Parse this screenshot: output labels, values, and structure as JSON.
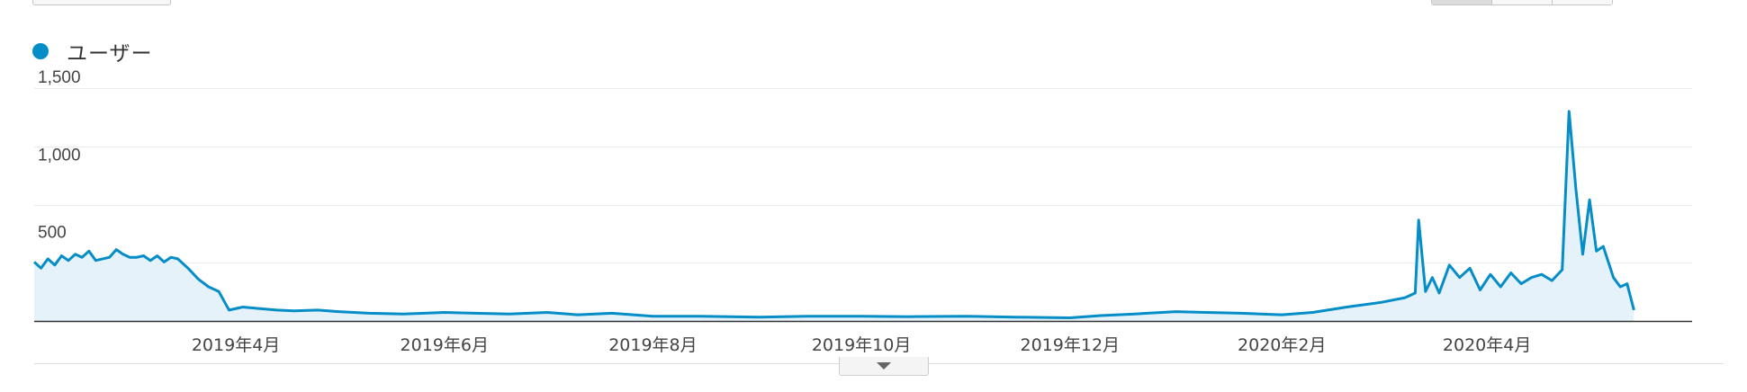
{
  "legend": {
    "label": "ユーザー",
    "color": "#058dc7"
  },
  "chart_data": {
    "type": "area",
    "title": "",
    "xlabel": "",
    "ylabel": "",
    "ylim": [
      0,
      1500
    ],
    "yticks": [
      {
        "value": 500,
        "label": "500"
      },
      {
        "value": 1000,
        "label": "1,000"
      },
      {
        "value": 1500,
        "label": "1,500"
      }
    ],
    "xlim": [
      "2019-02-01",
      "2020-05-31"
    ],
    "xticks": [
      {
        "date": "2019-04-01",
        "label": "2019年4月"
      },
      {
        "date": "2019-06-01",
        "label": "2019年6月"
      },
      {
        "date": "2019-08-01",
        "label": "2019年8月"
      },
      {
        "date": "2019-10-01",
        "label": "2019年10月"
      },
      {
        "date": "2019-12-01",
        "label": "2019年12月"
      },
      {
        "date": "2020-02-01",
        "label": "2020年2月"
      },
      {
        "date": "2020-04-01",
        "label": "2020年4月"
      }
    ],
    "grid": true,
    "series": [
      {
        "name": "ユーザー",
        "color": "#058dc7",
        "points": [
          [
            "2019-02-01",
            380
          ],
          [
            "2019-02-03",
            340
          ],
          [
            "2019-02-05",
            400
          ],
          [
            "2019-02-07",
            360
          ],
          [
            "2019-02-09",
            420
          ],
          [
            "2019-02-11",
            390
          ],
          [
            "2019-02-13",
            430
          ],
          [
            "2019-02-15",
            410
          ],
          [
            "2019-02-17",
            450
          ],
          [
            "2019-02-19",
            390
          ],
          [
            "2019-02-21",
            400
          ],
          [
            "2019-02-23",
            410
          ],
          [
            "2019-02-25",
            460
          ],
          [
            "2019-02-27",
            430
          ],
          [
            "2019-03-01",
            410
          ],
          [
            "2019-03-03",
            410
          ],
          [
            "2019-03-05",
            420
          ],
          [
            "2019-03-07",
            390
          ],
          [
            "2019-03-09",
            420
          ],
          [
            "2019-03-11",
            380
          ],
          [
            "2019-03-13",
            410
          ],
          [
            "2019-03-15",
            400
          ],
          [
            "2019-03-18",
            340
          ],
          [
            "2019-03-21",
            270
          ],
          [
            "2019-03-24",
            220
          ],
          [
            "2019-03-27",
            190
          ],
          [
            "2019-03-30",
            70
          ],
          [
            "2019-04-03",
            90
          ],
          [
            "2019-04-08",
            80
          ],
          [
            "2019-04-13",
            70
          ],
          [
            "2019-04-18",
            65
          ],
          [
            "2019-04-25",
            70
          ],
          [
            "2019-05-01",
            60
          ],
          [
            "2019-05-10",
            50
          ],
          [
            "2019-05-20",
            45
          ],
          [
            "2019-06-01",
            55
          ],
          [
            "2019-06-10",
            50
          ],
          [
            "2019-06-20",
            45
          ],
          [
            "2019-07-01",
            55
          ],
          [
            "2019-07-10",
            40
          ],
          [
            "2019-07-20",
            50
          ],
          [
            "2019-08-01",
            30
          ],
          [
            "2019-08-15",
            30
          ],
          [
            "2019-09-01",
            25
          ],
          [
            "2019-09-15",
            30
          ],
          [
            "2019-10-01",
            30
          ],
          [
            "2019-10-15",
            28
          ],
          [
            "2019-11-01",
            30
          ],
          [
            "2019-11-15",
            25
          ],
          [
            "2019-12-01",
            20
          ],
          [
            "2019-12-10",
            35
          ],
          [
            "2019-12-20",
            45
          ],
          [
            "2020-01-01",
            60
          ],
          [
            "2020-01-10",
            55
          ],
          [
            "2020-01-20",
            50
          ],
          [
            "2020-02-01",
            40
          ],
          [
            "2020-02-10",
            55
          ],
          [
            "2020-02-20",
            90
          ],
          [
            "2020-03-01",
            120
          ],
          [
            "2020-03-08",
            150
          ],
          [
            "2020-03-11",
            180
          ],
          [
            "2020-03-12",
            650
          ],
          [
            "2020-03-14",
            190
          ],
          [
            "2020-03-16",
            280
          ],
          [
            "2020-03-18",
            180
          ],
          [
            "2020-03-21",
            360
          ],
          [
            "2020-03-24",
            280
          ],
          [
            "2020-03-27",
            340
          ],
          [
            "2020-03-30",
            200
          ],
          [
            "2020-04-02",
            300
          ],
          [
            "2020-04-05",
            220
          ],
          [
            "2020-04-08",
            310
          ],
          [
            "2020-04-11",
            240
          ],
          [
            "2020-04-14",
            280
          ],
          [
            "2020-04-17",
            300
          ],
          [
            "2020-04-20",
            260
          ],
          [
            "2020-04-23",
            330
          ],
          [
            "2020-04-25",
            1350
          ],
          [
            "2020-04-27",
            850
          ],
          [
            "2020-04-29",
            430
          ],
          [
            "2020-05-01",
            780
          ],
          [
            "2020-05-03",
            450
          ],
          [
            "2020-05-05",
            480
          ],
          [
            "2020-05-08",
            280
          ],
          [
            "2020-05-10",
            220
          ],
          [
            "2020-05-12",
            240
          ],
          [
            "2020-05-14",
            70
          ]
        ]
      }
    ]
  }
}
